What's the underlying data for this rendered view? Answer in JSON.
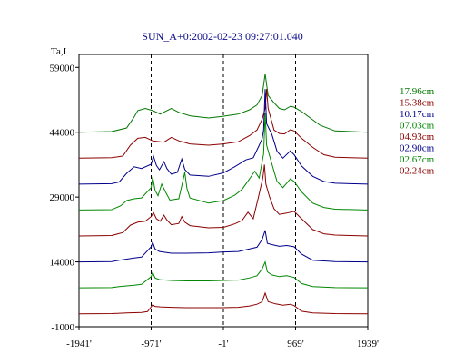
{
  "chart_data": {
    "type": "line",
    "title": "SUN_A+0:2002-02-23 09:27:01.040",
    "ylabel": "Ta,I",
    "xlim": [
      -1941,
      1939
    ],
    "ylim": [
      -1000,
      62000
    ],
    "x_ticks": [
      -1941,
      -971,
      -1,
      969,
      1939
    ],
    "x_tick_labels": [
      "-1941'",
      "-971'",
      "-1'",
      "969'",
      "1939'"
    ],
    "y_ticks": [
      -1000,
      14000,
      29000,
      44000,
      59000
    ],
    "y_tick_labels": [
      "-1000",
      "14000",
      "29000",
      "44000",
      "59000"
    ],
    "vlines": [
      -971,
      -1,
      969
    ],
    "series": [
      {
        "name": "17.96cm",
        "color": "#007700",
        "points": [
          [
            -1941,
            44000
          ],
          [
            -1500,
            44150
          ],
          [
            -1300,
            45000
          ],
          [
            -1200,
            47500
          ],
          [
            -1150,
            49000
          ],
          [
            -1050,
            49500
          ],
          [
            -950,
            49000
          ],
          [
            -850,
            48200
          ],
          [
            -700,
            49500
          ],
          [
            -600,
            48600
          ],
          [
            -450,
            47800
          ],
          [
            -200,
            47300
          ],
          [
            -1,
            47700
          ],
          [
            200,
            48200
          ],
          [
            350,
            49200
          ],
          [
            450,
            50300
          ],
          [
            520,
            52500
          ],
          [
            560,
            57500
          ],
          [
            600,
            52500
          ],
          [
            680,
            50800
          ],
          [
            750,
            49500
          ],
          [
            820,
            49200
          ],
          [
            900,
            50000
          ],
          [
            950,
            49800
          ],
          [
            1050,
            48800
          ],
          [
            1150,
            47500
          ],
          [
            1300,
            45600
          ],
          [
            1500,
            44300
          ],
          [
            1939,
            44000
          ]
        ]
      },
      {
        "name": "15.38cm",
        "color": "#8b0000",
        "points": [
          [
            -1941,
            38000
          ],
          [
            -1500,
            38100
          ],
          [
            -1350,
            38500
          ],
          [
            -1250,
            41000
          ],
          [
            -1150,
            42600
          ],
          [
            -1050,
            42800
          ],
          [
            -950,
            42000
          ],
          [
            -800,
            41700
          ],
          [
            -700,
            42800
          ],
          [
            -600,
            42000
          ],
          [
            -450,
            41300
          ],
          [
            -200,
            41000
          ],
          [
            -1,
            41300
          ],
          [
            200,
            41800
          ],
          [
            350,
            43200
          ],
          [
            450,
            44500
          ],
          [
            520,
            47000
          ],
          [
            560,
            49500
          ],
          [
            580,
            54000
          ],
          [
            600,
            49500
          ],
          [
            680,
            44500
          ],
          [
            750,
            43700
          ],
          [
            820,
            43600
          ],
          [
            900,
            44600
          ],
          [
            950,
            44300
          ],
          [
            1050,
            42600
          ],
          [
            1200,
            40500
          ],
          [
            1350,
            38800
          ],
          [
            1500,
            38200
          ],
          [
            1939,
            38000
          ]
        ]
      },
      {
        "name": "10.17cm",
        "color": "#00008b",
        "points": [
          [
            -1941,
            32000
          ],
          [
            -1500,
            32100
          ],
          [
            -1400,
            32500
          ],
          [
            -1300,
            34500
          ],
          [
            -1200,
            36000
          ],
          [
            -1100,
            35600
          ],
          [
            -971,
            36600
          ],
          [
            -940,
            38500
          ],
          [
            -900,
            36300
          ],
          [
            -860,
            35300
          ],
          [
            -800,
            37200
          ],
          [
            -760,
            35600
          ],
          [
            -700,
            34300
          ],
          [
            -620,
            34700
          ],
          [
            -560,
            37800
          ],
          [
            -520,
            35400
          ],
          [
            -450,
            34100
          ],
          [
            -200,
            33800
          ],
          [
            -1,
            34600
          ],
          [
            150,
            36000
          ],
          [
            300,
            37600
          ],
          [
            400,
            38100
          ],
          [
            470,
            40600
          ],
          [
            520,
            42500
          ],
          [
            540,
            44500
          ],
          [
            560,
            54000
          ],
          [
            580,
            46000
          ],
          [
            650,
            43500
          ],
          [
            720,
            39600
          ],
          [
            800,
            38000
          ],
          [
            900,
            39700
          ],
          [
            950,
            38800
          ],
          [
            1050,
            36200
          ],
          [
            1200,
            33800
          ],
          [
            1350,
            32600
          ],
          [
            1500,
            32200
          ],
          [
            1939,
            32000
          ]
        ]
      },
      {
        "name": "07.03cm",
        "color": "#008800",
        "points": [
          [
            -1941,
            26000
          ],
          [
            -1500,
            26100
          ],
          [
            -1380,
            27000
          ],
          [
            -1300,
            28200
          ],
          [
            -1200,
            28600
          ],
          [
            -1100,
            28800
          ],
          [
            -971,
            31200
          ],
          [
            -950,
            33700
          ],
          [
            -920,
            30600
          ],
          [
            -880,
            29300
          ],
          [
            -830,
            32000
          ],
          [
            -780,
            30200
          ],
          [
            -720,
            28300
          ],
          [
            -600,
            28600
          ],
          [
            -560,
            31600
          ],
          [
            -520,
            34700
          ],
          [
            -490,
            31000
          ],
          [
            -450,
            28800
          ],
          [
            -200,
            27600
          ],
          [
            -1,
            28200
          ],
          [
            150,
            29400
          ],
          [
            250,
            30800
          ],
          [
            350,
            33200
          ],
          [
            420,
            35000
          ],
          [
            480,
            33400
          ],
          [
            540,
            39000
          ],
          [
            560,
            48400
          ],
          [
            580,
            41000
          ],
          [
            650,
            36700
          ],
          [
            720,
            32600
          ],
          [
            800,
            31200
          ],
          [
            900,
            33200
          ],
          [
            950,
            32600
          ],
          [
            1050,
            30200
          ],
          [
            1200,
            27600
          ],
          [
            1350,
            26600
          ],
          [
            1500,
            26200
          ],
          [
            1939,
            26000
          ]
        ]
      },
      {
        "name": "04.93cm",
        "color": "#8b0000",
        "points": [
          [
            -1941,
            20000
          ],
          [
            -1500,
            20100
          ],
          [
            -1350,
            20800
          ],
          [
            -1250,
            22500
          ],
          [
            -1150,
            23200
          ],
          [
            -1050,
            23400
          ],
          [
            -971,
            24500
          ],
          [
            -940,
            25400
          ],
          [
            -900,
            24000
          ],
          [
            -850,
            23400
          ],
          [
            -800,
            24800
          ],
          [
            -760,
            23700
          ],
          [
            -700,
            22600
          ],
          [
            -600,
            22900
          ],
          [
            -560,
            24500
          ],
          [
            -520,
            23200
          ],
          [
            -450,
            22400
          ],
          [
            -200,
            21900
          ],
          [
            -1,
            22000
          ],
          [
            150,
            22800
          ],
          [
            250,
            23600
          ],
          [
            330,
            25500
          ],
          [
            400,
            24000
          ],
          [
            470,
            29000
          ],
          [
            530,
            33500
          ],
          [
            550,
            36500
          ],
          [
            570,
            32000
          ],
          [
            620,
            29000
          ],
          [
            680,
            26300
          ],
          [
            750,
            25000
          ],
          [
            850,
            25300
          ],
          [
            950,
            25700
          ],
          [
            1050,
            24000
          ],
          [
            1200,
            21500
          ],
          [
            1350,
            20500
          ],
          [
            1500,
            20200
          ],
          [
            1939,
            20000
          ]
        ]
      },
      {
        "name": "02.90cm",
        "color": "#00008b",
        "points": [
          [
            -1941,
            14000
          ],
          [
            -1500,
            14050
          ],
          [
            -1400,
            14400
          ],
          [
            -1200,
            14900
          ],
          [
            -1100,
            15100
          ],
          [
            -971,
            17500
          ],
          [
            -950,
            18600
          ],
          [
            -920,
            17000
          ],
          [
            -860,
            16400
          ],
          [
            -700,
            16000
          ],
          [
            -500,
            16000
          ],
          [
            -200,
            16100
          ],
          [
            -1,
            16300
          ],
          [
            200,
            16400
          ],
          [
            350,
            17000
          ],
          [
            450,
            17400
          ],
          [
            520,
            19200
          ],
          [
            560,
            21300
          ],
          [
            590,
            18300
          ],
          [
            650,
            18000
          ],
          [
            750,
            17600
          ],
          [
            850,
            17800
          ],
          [
            950,
            17500
          ],
          [
            1050,
            15800
          ],
          [
            1200,
            14400
          ],
          [
            1500,
            14050
          ],
          [
            1939,
            14000
          ]
        ]
      },
      {
        "name": "02.67cm",
        "color": "#008800",
        "points": [
          [
            -1941,
            8000
          ],
          [
            -1500,
            8050
          ],
          [
            -1400,
            8300
          ],
          [
            -1200,
            8600
          ],
          [
            -1100,
            8800
          ],
          [
            -971,
            10600
          ],
          [
            -950,
            11600
          ],
          [
            -920,
            10300
          ],
          [
            -860,
            9900
          ],
          [
            -700,
            9700
          ],
          [
            -500,
            9600
          ],
          [
            -200,
            9600
          ],
          [
            -1,
            9700
          ],
          [
            200,
            9800
          ],
          [
            350,
            10300
          ],
          [
            450,
            10800
          ],
          [
            520,
            12400
          ],
          [
            560,
            14000
          ],
          [
            590,
            11700
          ],
          [
            650,
            11000
          ],
          [
            750,
            10600
          ],
          [
            850,
            10800
          ],
          [
            950,
            10400
          ],
          [
            1050,
            9000
          ],
          [
            1200,
            8300
          ],
          [
            1500,
            8050
          ],
          [
            1939,
            8000
          ]
        ]
      },
      {
        "name": "02.24cm",
        "color": "#8b0000",
        "points": [
          [
            -1941,
            2000
          ],
          [
            -1500,
            2050
          ],
          [
            -1300,
            2200
          ],
          [
            -1100,
            2300
          ],
          [
            -1020,
            2500
          ],
          [
            -971,
            3600
          ],
          [
            -950,
            4100
          ],
          [
            -920,
            3700
          ],
          [
            -850,
            3600
          ],
          [
            -700,
            3500
          ],
          [
            -500,
            3400
          ],
          [
            -200,
            3400
          ],
          [
            -1,
            3400
          ],
          [
            200,
            3500
          ],
          [
            350,
            3800
          ],
          [
            450,
            4200
          ],
          [
            520,
            4800
          ],
          [
            560,
            6800
          ],
          [
            600,
            4800
          ],
          [
            700,
            4300
          ],
          [
            800,
            4000
          ],
          [
            900,
            4200
          ],
          [
            950,
            3900
          ],
          [
            1050,
            2600
          ],
          [
            1200,
            2200
          ],
          [
            1500,
            2050
          ],
          [
            1939,
            2000
          ]
        ]
      }
    ]
  }
}
